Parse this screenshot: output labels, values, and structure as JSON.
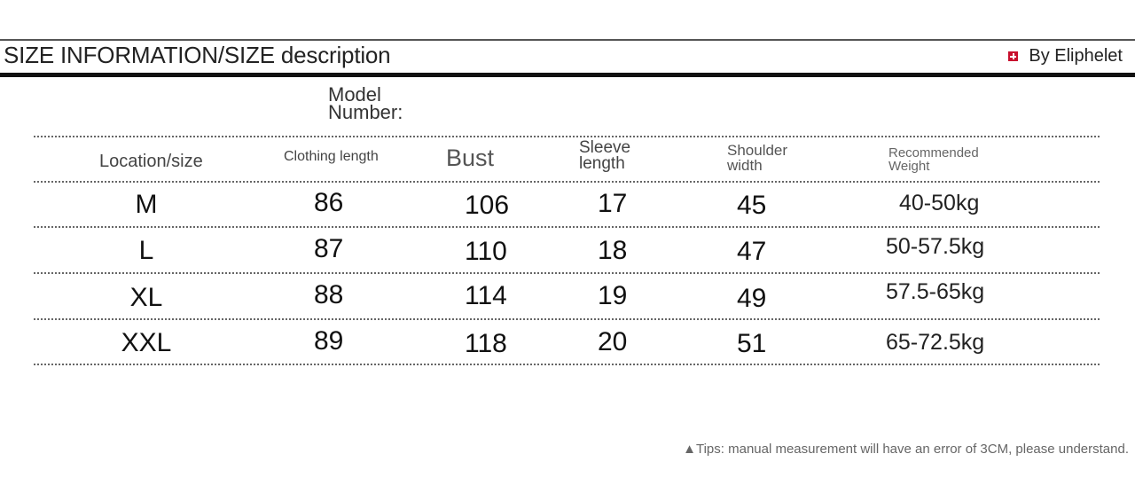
{
  "header": {
    "title": "SIZE INFORMATION/SIZE description",
    "brand": "By Eliphelet",
    "brand_icon": "swiss-cross-icon",
    "brand_color": "#c8102e"
  },
  "model_label": "Model Number:",
  "table": {
    "columns": [
      "Location/size",
      "Clothing length",
      "Bust",
      "Sleeve length",
      "Shoulder width",
      "Recommended Weight"
    ],
    "rows": [
      [
        "M",
        "86",
        "106",
        "17",
        "45",
        "40-50kg"
      ],
      [
        "L",
        "87",
        "110",
        "18",
        "47",
        "50-57.5kg"
      ],
      [
        "XL",
        "88",
        "114",
        "19",
        "49",
        "57.5-65kg"
      ],
      [
        "XXL",
        "89",
        "118",
        "20",
        "51",
        "65-72.5kg"
      ]
    ]
  },
  "tips": "▲Tips: manual measurement will have an error of 3CM, please understand."
}
